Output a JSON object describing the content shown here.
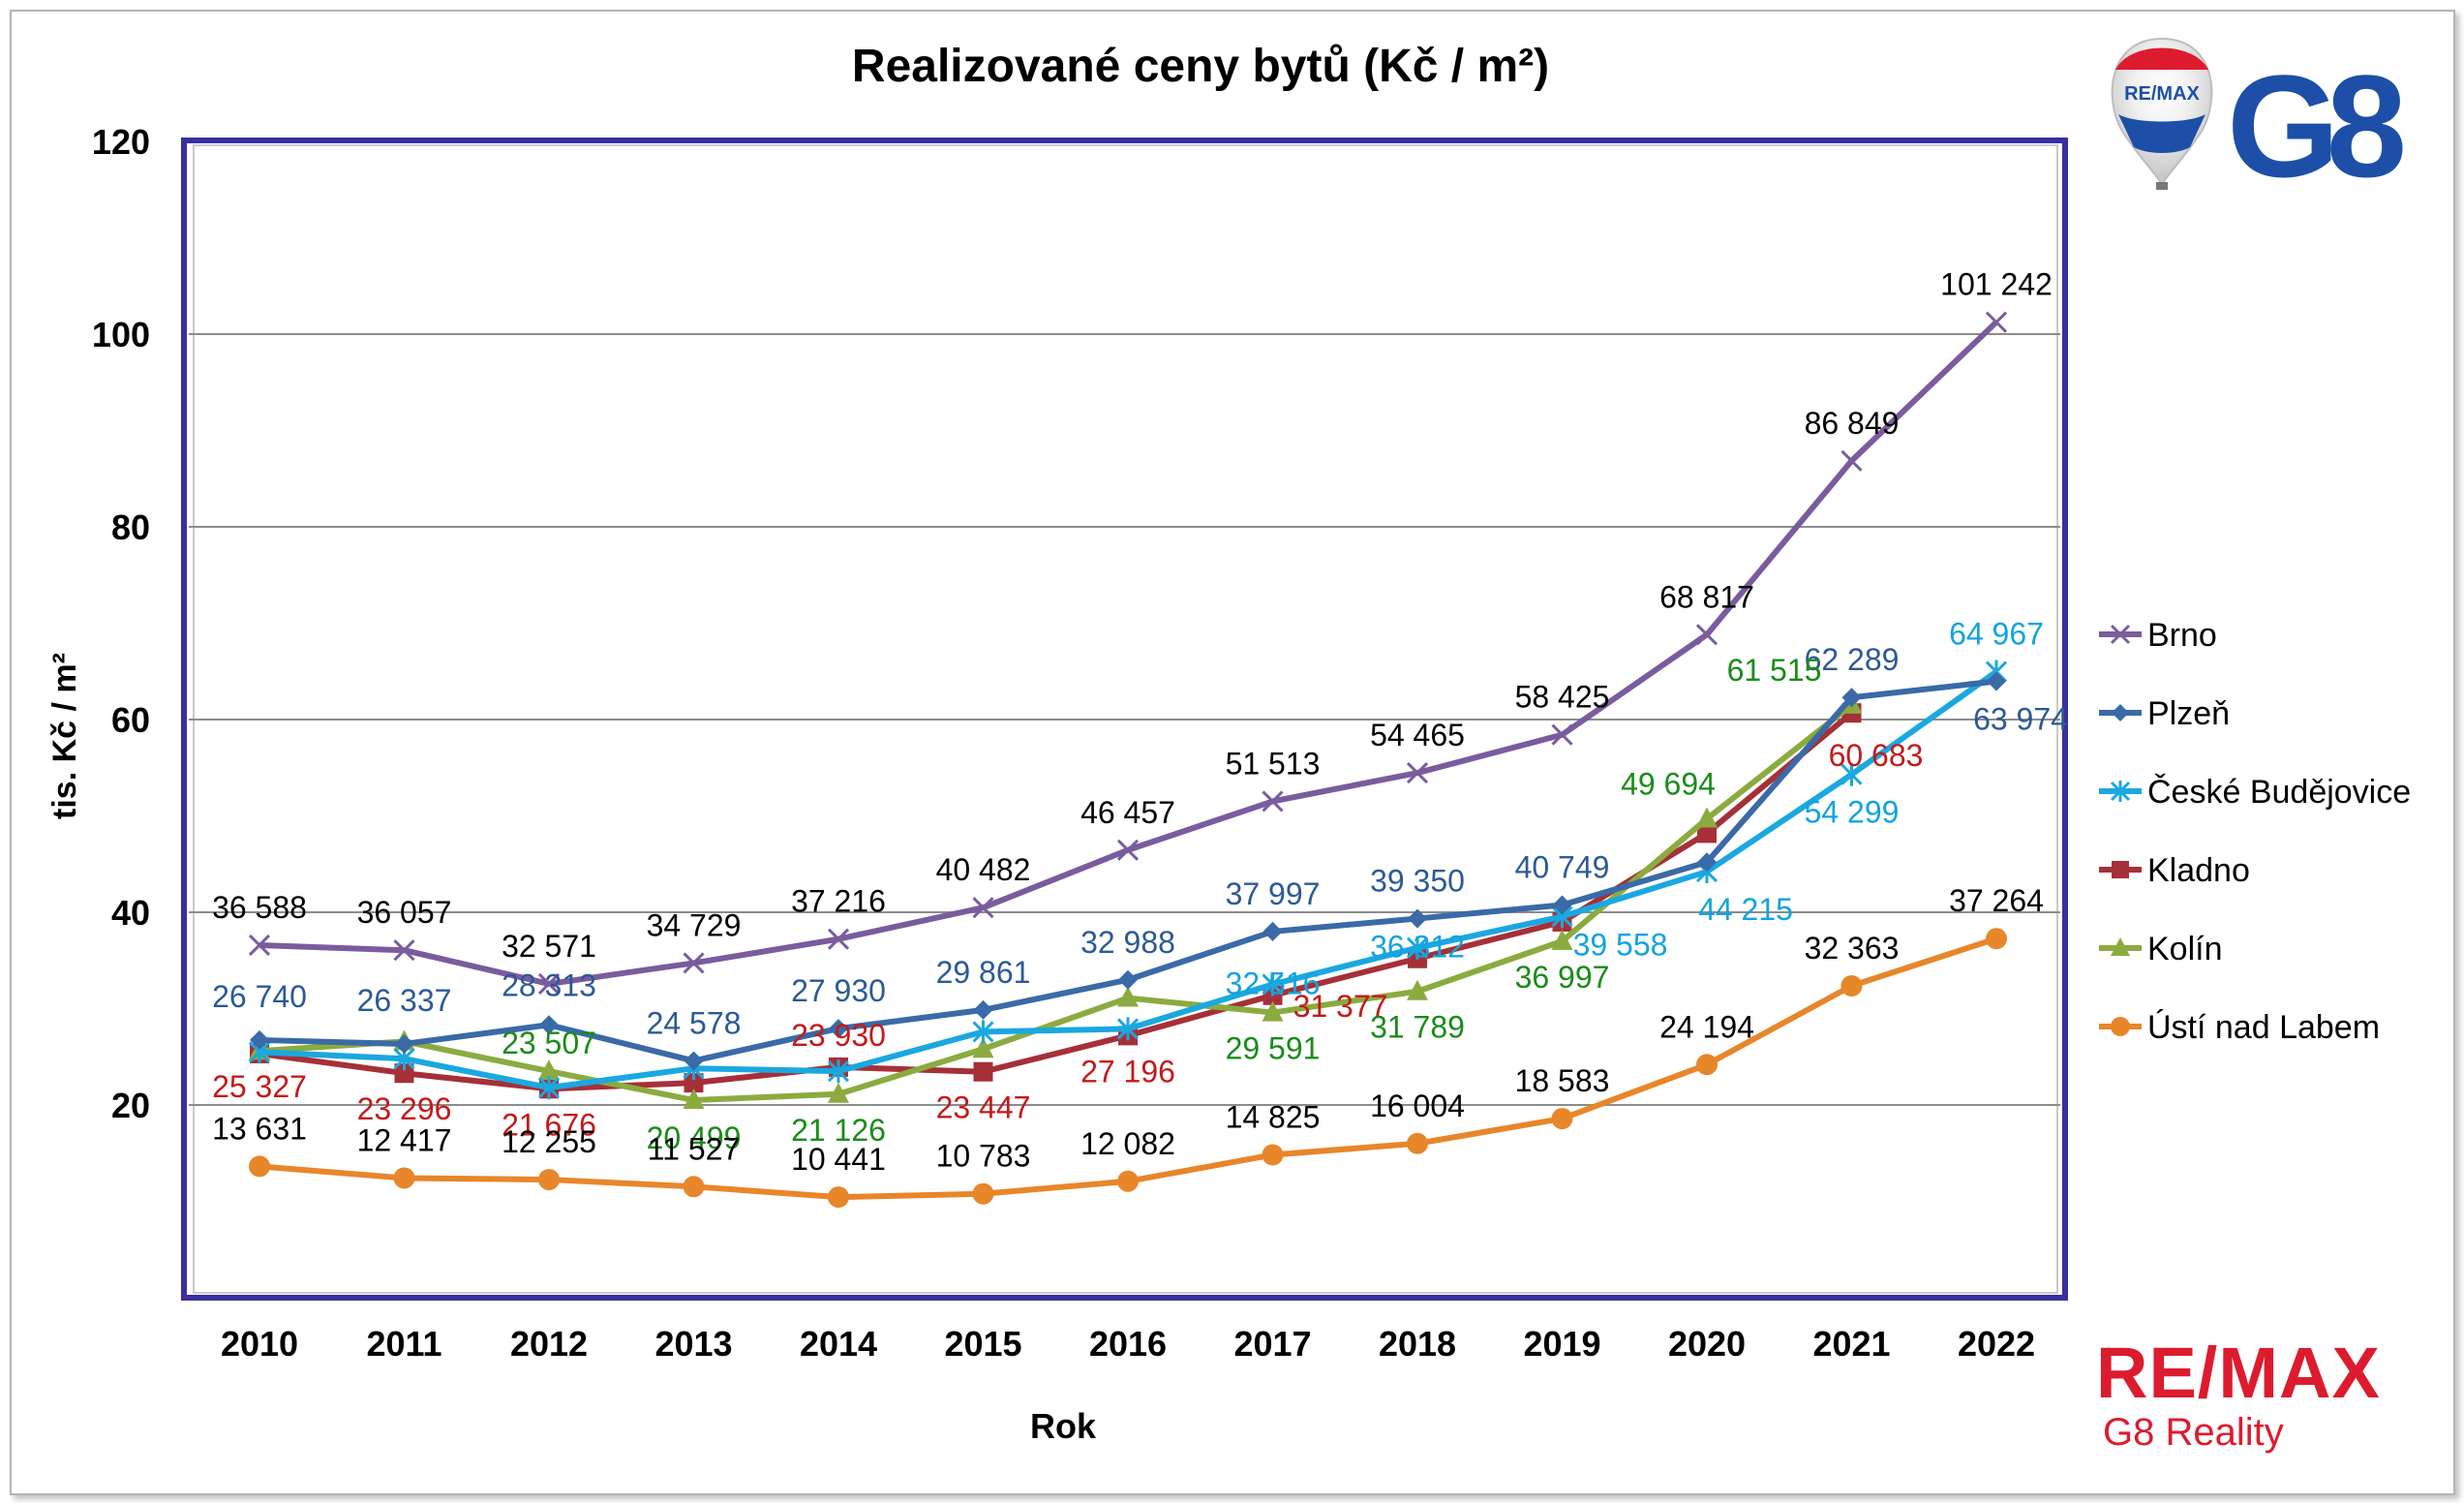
{
  "brand": {
    "balloon_text": "RE/MAX",
    "logo_text": "G8",
    "bottom_brand": "RE/MAX",
    "bottom_sub": "G8 Reality",
    "colors": {
      "red": "#dc1c2e",
      "blue": "#1d4fa8"
    }
  },
  "chart_data": {
    "type": "line",
    "title": "Realizované ceny bytů (Kč / m²)",
    "xlabel": "Rok",
    "ylabel": "tis. Kč / m²",
    "ylim": [
      0,
      120
    ],
    "yticks": [
      20,
      40,
      60,
      80,
      100,
      120
    ],
    "grid": true,
    "legend_position": "right",
    "categories": [
      "2010",
      "2011",
      "2012",
      "2013",
      "2014",
      "2015",
      "2016",
      "2017",
      "2018",
      "2019",
      "2020",
      "2021",
      "2022"
    ],
    "series": [
      {
        "name": "Brno",
        "color": "#7a5c9e",
        "label_color": "#000000",
        "marker": "x",
        "values": [
          36.588,
          36.057,
          32.571,
          34.729,
          37.216,
          40.482,
          46.457,
          51.513,
          54.465,
          58.425,
          68.817,
          86.849,
          101.242
        ],
        "labels": [
          "36 588",
          "36 057",
          "32 571",
          "34 729",
          "37 216",
          "40 482",
          "46 457",
          "51 513",
          "54 465",
          "58 425",
          "68 817",
          "86 849",
          "101 242"
        ]
      },
      {
        "name": "Plzeň",
        "color": "#3a6aa7",
        "label_color": "#2c5a95",
        "marker": "diamond",
        "values": [
          26.74,
          26.337,
          28.313,
          24.578,
          27.93,
          29.861,
          32.988,
          37.997,
          39.35,
          40.749,
          45.2,
          62.289,
          63.974
        ],
        "labels": [
          "26 740",
          "26 337",
          "28 313",
          "24 578",
          "27 930",
          "29 861",
          "32 988",
          "37 997",
          "39 350",
          "40 749",
          "",
          "62 289",
          "63 974"
        ]
      },
      {
        "name": "České Budějovice",
        "color": "#1aa8e0",
        "label_color": "#12a3e0",
        "marker": "star",
        "values": [
          25.5,
          24.8,
          21.8,
          23.8,
          23.5,
          27.6,
          27.9,
          32.516,
          36.312,
          39.558,
          44.215,
          54.299,
          64.967
        ],
        "labels": [
          "",
          "",
          "",
          "",
          "",
          "",
          "",
          "32 516",
          "36 312",
          "39 558",
          "44 215",
          "54 299",
          "64 967"
        ]
      },
      {
        "name": "Kladno",
        "color": "#a63038",
        "label_color": "#c41a1a",
        "marker": "square",
        "values": [
          25.327,
          23.296,
          21.676,
          22.3,
          23.93,
          23.447,
          27.196,
          31.377,
          35.2,
          39.0,
          48.2,
          60.683,
          null
        ],
        "labels": [
          "25 327",
          "23 296",
          "21 676",
          "",
          "23 930",
          "23 447",
          "27 196",
          "31 377",
          "",
          "",
          "",
          "60 683",
          ""
        ]
      },
      {
        "name": "Kolín",
        "color": "#8bab3f",
        "label_color": "#1a8c1a",
        "marker": "triangle",
        "values": [
          25.6,
          26.6,
          23.507,
          20.499,
          21.126,
          25.8,
          31.1,
          29.591,
          31.789,
          36.997,
          49.694,
          61.515,
          null
        ],
        "labels": [
          "",
          "",
          "23 507",
          "20 499",
          "21 126",
          "",
          "",
          "29 591",
          "31 789",
          "36 997",
          "49 694",
          "61 515",
          ""
        ]
      },
      {
        "name": "Ústí nad Labem",
        "color": "#e8862a",
        "label_color": "#000000",
        "marker": "circle",
        "values": [
          13.631,
          12.417,
          12.255,
          11.527,
          10.441,
          10.783,
          12.082,
          14.825,
          16.004,
          18.583,
          24.194,
          32.363,
          37.264
        ],
        "labels": [
          "13 631",
          "12 417",
          "12 255",
          "11 527",
          "10 441",
          "10 783",
          "12 082",
          "14 825",
          "16 004",
          "18 583",
          "24 194",
          "32 363",
          "37 264"
        ]
      }
    ]
  }
}
